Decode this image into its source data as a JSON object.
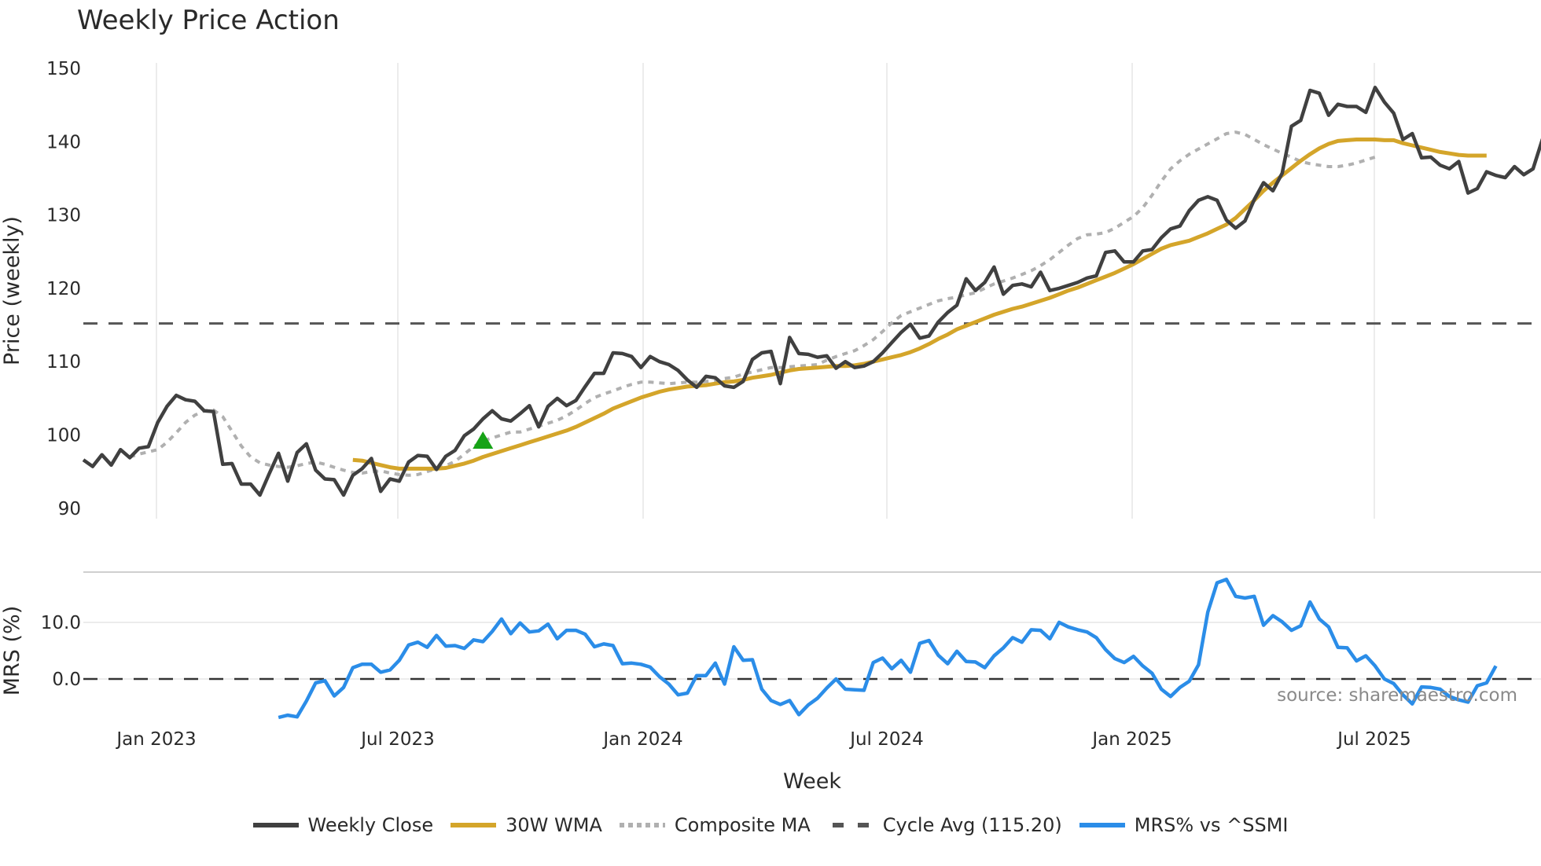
{
  "title": "Weekly Price Action",
  "source": "source: sharemaestro.com",
  "colors": {
    "close": "#404040",
    "wma": "#d4a52a",
    "composite": "#b0b0b0",
    "cycle": "#555555",
    "mrs": "#2b8de8",
    "signal": "#17a317",
    "grid": "#ececec"
  },
  "legend": [
    {
      "label": "Weekly Close",
      "style": "solid",
      "color": "#404040"
    },
    {
      "label": "30W WMA",
      "style": "solid",
      "color": "#d4a52a"
    },
    {
      "label": "Composite MA",
      "style": "dotted",
      "color": "#b0b0b0"
    },
    {
      "label": "Cycle Avg (115.20)",
      "style": "dashed",
      "color": "#555555"
    },
    {
      "label": "MRS% vs ^SSMI",
      "style": "solid",
      "color": "#2b8de8"
    }
  ],
  "chart_data": [
    {
      "type": "line",
      "title": "Weekly Price Action",
      "xlabel": "Week",
      "ylabel": "Price (weekly)",
      "ylim": [
        89,
        151
      ],
      "yticks": [
        90,
        100,
        110,
        120,
        130,
        140,
        150
      ],
      "xticks": [
        "Jan 2023",
        "Jul 2023",
        "Jan 2024",
        "Jul 2024",
        "Jan 2025",
        "Jul 2025"
      ],
      "grid": true,
      "start_week": "2022-11-07",
      "reference_line": {
        "name": "Cycle Avg",
        "value": 115.2
      },
      "signal_marker": {
        "type": "triangle-up",
        "week_index": 43,
        "value": 99.2
      },
      "series": [
        {
          "name": "Weekly Close",
          "start_index": 0,
          "values": [
            96.6,
            95.7,
            97.3,
            95.9,
            98.0,
            96.9,
            98.2,
            98.4,
            101.7,
            103.9,
            105.4,
            104.8,
            104.6,
            103.3,
            103.2,
            96.0,
            96.1,
            93.3,
            93.3,
            91.8,
            94.7,
            97.5,
            93.7,
            97.6,
            98.8,
            95.2,
            94.0,
            93.9,
            91.8,
            94.5,
            95.4,
            96.8,
            92.3,
            94.0,
            93.7,
            96.3,
            97.2,
            97.1,
            95.3,
            97.1,
            97.9,
            99.9,
            100.8,
            102.2,
            103.3,
            102.2,
            101.9,
            102.9,
            104.0,
            101.1,
            103.9,
            105.0,
            104.0,
            104.7,
            106.6,
            108.4,
            108.4,
            111.2,
            111.1,
            110.7,
            109.2,
            110.7,
            110.0,
            109.6,
            108.8,
            107.5,
            106.5,
            108.0,
            107.8,
            106.7,
            106.5,
            107.3,
            110.3,
            111.2,
            111.4,
            107.0,
            113.3,
            111.1,
            111.0,
            110.6,
            110.8,
            109.1,
            110.0,
            109.2,
            109.4,
            110.0,
            111.2,
            112.6,
            114.0,
            115.1,
            113.2,
            113.5,
            115.4,
            116.7,
            117.7,
            121.3,
            119.7,
            120.8,
            122.9,
            119.2,
            120.4,
            120.6,
            120.2,
            122.2,
            119.7,
            120.0,
            120.4,
            120.8,
            121.4,
            121.7,
            124.9,
            125.1,
            123.6,
            123.6,
            125.1,
            125.3,
            126.9,
            128.1,
            128.5,
            130.6,
            132.0,
            132.5,
            132.0,
            129.3,
            128.2,
            129.2,
            132.1,
            134.4,
            133.3,
            135.7,
            142.1,
            142.9,
            147.0,
            146.6,
            143.6,
            145.1,
            144.8,
            144.8,
            144.0,
            147.4,
            145.4,
            143.9,
            140.3,
            141.1,
            137.8,
            137.9,
            136.8,
            136.3,
            137.3,
            133.0,
            133.6,
            135.9,
            135.4,
            135.1,
            136.6,
            135.5,
            136.3,
            140.3,
            139.2,
            140.0
          ]
        },
        {
          "name": "30W WMA",
          "start_index": 29,
          "values": [
            96.6,
            96.5,
            96.2,
            95.9,
            95.6,
            95.4,
            95.4,
            95.4,
            95.4,
            95.4,
            95.5,
            95.8,
            96.1,
            96.5,
            97.0,
            97.4,
            97.8,
            98.2,
            98.6,
            99.0,
            99.4,
            99.8,
            100.2,
            100.6,
            101.1,
            101.7,
            102.3,
            102.9,
            103.6,
            104.1,
            104.6,
            105.1,
            105.5,
            105.9,
            106.2,
            106.4,
            106.6,
            106.7,
            106.8,
            107.0,
            107.2,
            107.3,
            107.5,
            107.8,
            108.0,
            108.2,
            108.5,
            108.8,
            109.0,
            109.1,
            109.2,
            109.3,
            109.4,
            109.4,
            109.5,
            109.7,
            110.0,
            110.3,
            110.6,
            110.9,
            111.3,
            111.8,
            112.4,
            113.1,
            113.7,
            114.4,
            114.9,
            115.4,
            115.9,
            116.4,
            116.8,
            117.2,
            117.5,
            117.9,
            118.3,
            118.7,
            119.2,
            119.7,
            120.1,
            120.6,
            121.1,
            121.6,
            122.1,
            122.7,
            123.3,
            124.0,
            124.7,
            125.4,
            125.9,
            126.2,
            126.5,
            127.0,
            127.5,
            128.1,
            128.7,
            129.6,
            130.8,
            132.0,
            133.3,
            134.4,
            135.4,
            136.4,
            137.4,
            138.3,
            139.1,
            139.7,
            140.1,
            140.2,
            140.3,
            140.3,
            140.3,
            140.2,
            140.2,
            139.8,
            139.5,
            139.2,
            138.9,
            138.6,
            138.4,
            138.2,
            138.1,
            138.1,
            138.1
          ]
        },
        {
          "name": "Composite MA",
          "start_index": 5,
          "values": [
            97.0,
            97.4,
            97.7,
            98.0,
            99.0,
            100.3,
            101.7,
            102.7,
            103.3,
            103.4,
            102.5,
            100.5,
            98.5,
            97.0,
            96.2,
            95.9,
            95.7,
            95.6,
            95.8,
            96.1,
            96.3,
            96.0,
            95.6,
            95.2,
            94.9,
            94.8,
            95.0,
            95.1,
            94.8,
            94.6,
            94.5,
            94.6,
            95.0,
            95.4,
            95.8,
            96.4,
            97.4,
            98.4,
            99.2,
            99.6,
            100.0,
            100.4,
            100.4,
            100.8,
            101.2,
            101.6,
            102.0,
            102.6,
            103.4,
            104.3,
            105.1,
            105.6,
            106.0,
            106.5,
            106.9,
            107.2,
            107.2,
            107.1,
            107.0,
            107.1,
            107.2,
            107.2,
            107.3,
            107.4,
            107.7,
            107.9,
            108.3,
            108.6,
            108.9,
            109.2,
            109.2,
            109.3,
            109.4,
            109.5,
            109.6,
            110.2,
            110.7,
            111.1,
            111.5,
            112.2,
            113.0,
            114.1,
            115.3,
            116.3,
            116.8,
            117.3,
            117.8,
            118.3,
            118.6,
            118.8,
            119.1,
            119.4,
            120.0,
            120.6,
            121.0,
            121.4,
            121.9,
            122.4,
            123.1,
            123.9,
            124.9,
            125.9,
            126.8,
            127.3,
            127.4,
            127.6,
            128.2,
            129.0,
            129.8,
            131.0,
            132.7,
            134.6,
            136.3,
            137.4,
            138.3,
            139.0,
            139.7,
            140.4,
            141.1,
            141.3,
            141.0,
            140.3,
            139.6,
            139.0,
            138.4,
            137.9,
            137.3,
            137.0,
            136.8,
            136.6,
            136.6,
            136.8,
            137.1,
            137.5,
            137.9
          ]
        }
      ]
    },
    {
      "type": "line",
      "title": "",
      "xlabel": "Week",
      "ylabel": "MRS (%)",
      "ylim": [
        -8,
        19
      ],
      "yticks": [
        0.0,
        10.0
      ],
      "ytick_labels": [
        "0.0",
        "10.0"
      ],
      "grid": true,
      "reference_line": {
        "name": "Zero",
        "value": 0.0
      },
      "series": [
        {
          "name": "MRS% vs ^SSMI",
          "start_index": 21,
          "values": [
            -6.8,
            -6.4,
            -6.7,
            -3.9,
            -0.7,
            -0.3,
            -3.0,
            -1.5,
            2.0,
            2.6,
            2.6,
            1.2,
            1.6,
            3.3,
            6.0,
            6.5,
            5.6,
            7.7,
            5.8,
            5.9,
            5.4,
            6.9,
            6.6,
            8.4,
            10.6,
            8.0,
            9.9,
            8.3,
            8.5,
            9.7,
            7.1,
            8.6,
            8.6,
            7.9,
            5.7,
            6.2,
            5.9,
            2.7,
            2.8,
            2.6,
            2.1,
            0.4,
            -0.9,
            -2.8,
            -2.5,
            0.6,
            0.6,
            2.8,
            -0.9,
            5.7,
            3.3,
            3.4,
            -1.8,
            -3.8,
            -4.5,
            -3.8,
            -6.3,
            -4.6,
            -3.4,
            -1.6,
            0.0,
            -1.8,
            -1.9,
            -2.0,
            2.9,
            3.7,
            1.8,
            3.3,
            1.2,
            6.3,
            6.8,
            4.2,
            2.7,
            4.9,
            3.1,
            3.0,
            2.0,
            4.1,
            5.5,
            7.3,
            6.5,
            8.7,
            8.6,
            7.1,
            10.0,
            9.2,
            8.7,
            8.3,
            7.3,
            5.2,
            3.6,
            2.9,
            4.0,
            2.3,
            1.0,
            -1.8,
            -3.1,
            -1.5,
            -0.4,
            2.5,
            11.8,
            17.0,
            17.6,
            14.6,
            14.3,
            14.6,
            9.5,
            11.2,
            10.1,
            8.6,
            9.4,
            13.6,
            10.6,
            9.2,
            5.6,
            5.5,
            3.2,
            4.1,
            2.3,
            0.0,
            -0.8,
            -2.8,
            -4.4,
            -1.4,
            -1.5,
            -1.8,
            -3.1,
            -3.7,
            -4.1,
            -1.2,
            -0.7,
            2.3
          ]
        }
      ]
    }
  ]
}
